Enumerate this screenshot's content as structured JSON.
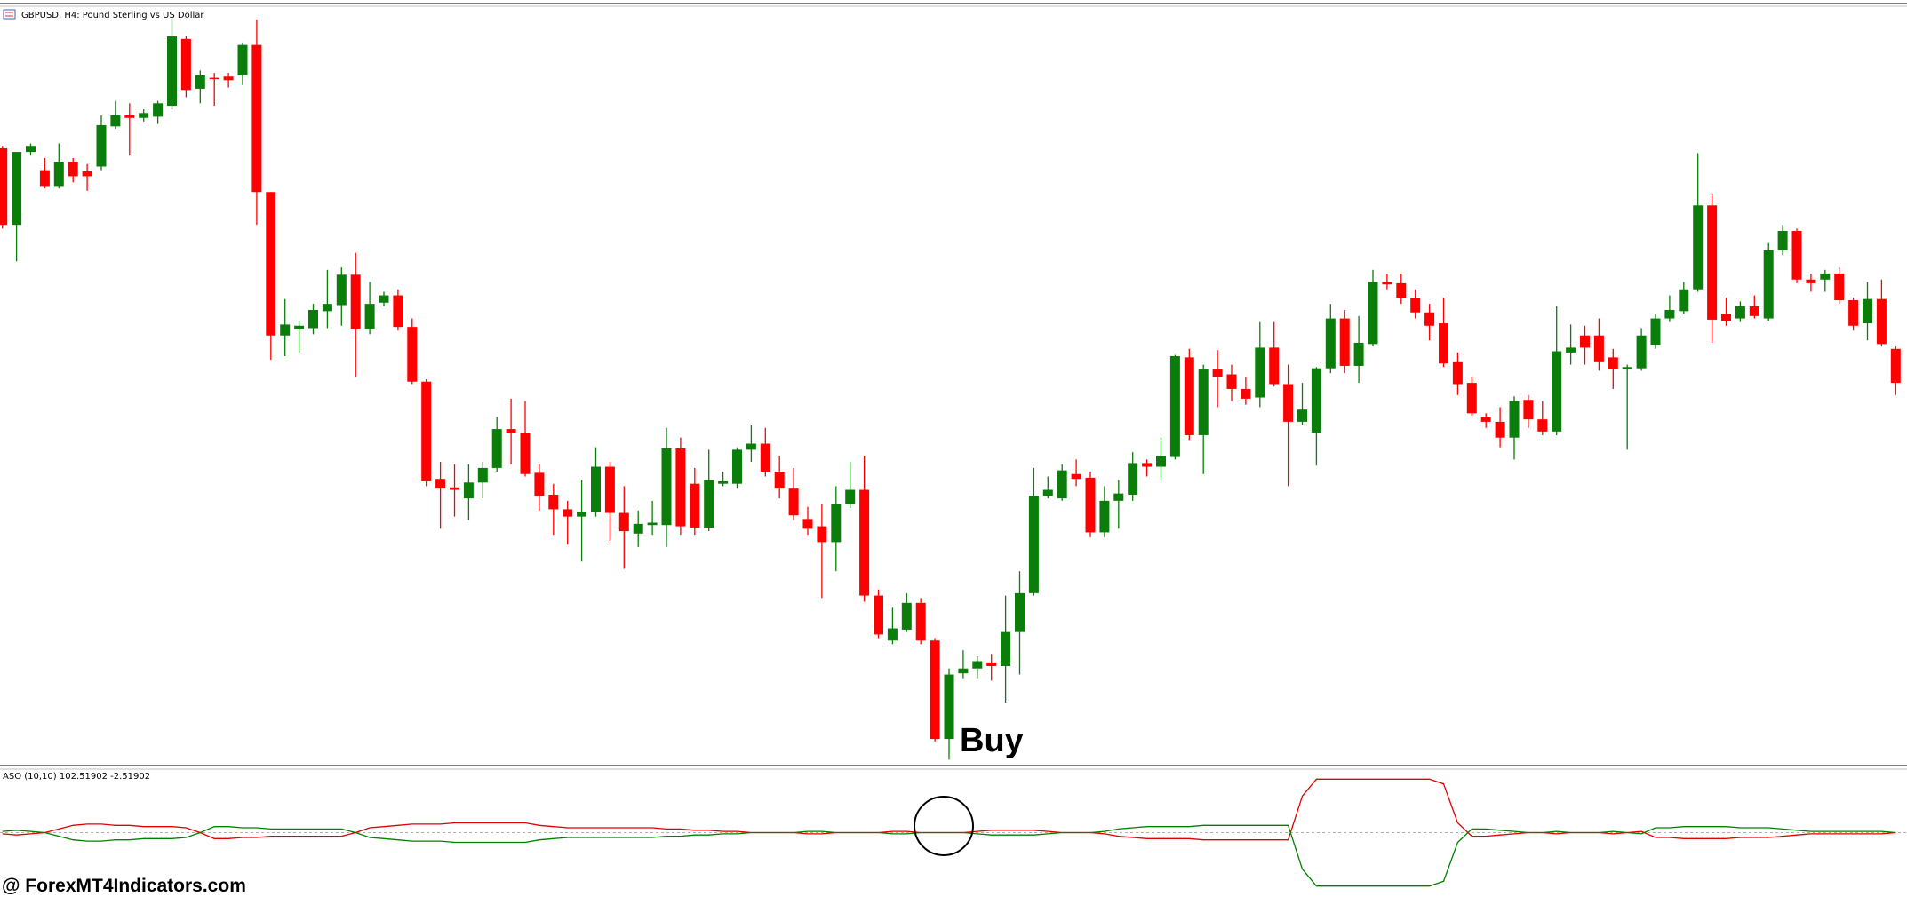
{
  "chart_data": [
    {
      "type": "candlestick",
      "title": "GBPUSD, H4:  Pound Sterling vs US Dollar",
      "ylim": [
        0,
        630
      ],
      "up_color": "#0a7d0a",
      "down_color": "#ff0000",
      "annotations": [
        "Buy"
      ],
      "candles": [
        [
          508,
          510,
          442,
          445
        ],
        [
          445,
          505,
          415,
          505
        ],
        [
          505,
          512,
          502,
          510
        ],
        [
          490,
          500,
          475,
          477
        ],
        [
          477,
          512,
          475,
          497
        ],
        [
          497,
          500,
          480,
          485
        ],
        [
          489,
          495,
          473,
          485
        ],
        [
          493,
          535,
          490,
          527
        ],
        [
          526,
          547,
          524,
          535
        ],
        [
          535,
          545,
          502,
          533
        ],
        [
          533,
          540,
          530,
          537
        ],
        [
          534,
          547,
          528,
          545
        ],
        [
          543,
          615,
          540,
          600
        ],
        [
          598,
          600,
          550,
          556
        ],
        [
          557,
          572,
          545,
          568
        ],
        [
          566,
          570,
          543,
          565
        ],
        [
          567,
          570,
          558,
          564
        ],
        [
          568,
          595,
          560,
          593
        ],
        [
          593,
          614,
          445,
          472
        ],
        [
          472,
          472,
          334,
          354
        ],
        [
          354,
          384,
          337,
          363
        ],
        [
          359,
          366,
          340,
          362
        ],
        [
          360,
          380,
          355,
          375
        ],
        [
          374,
          408,
          360,
          380
        ],
        [
          379,
          410,
          362,
          404
        ],
        [
          404,
          422,
          320,
          359
        ],
        [
          359,
          398,
          355,
          380
        ],
        [
          381,
          390,
          378,
          387
        ],
        [
          387,
          392,
          358,
          361
        ],
        [
          361,
          368,
          314,
          316
        ],
        [
          316,
          318,
          230,
          234
        ],
        [
          236,
          250,
          195,
          228
        ],
        [
          229,
          248,
          205,
          227
        ],
        [
          220,
          248,
          202,
          233
        ],
        [
          233,
          250,
          220,
          245
        ],
        [
          245,
          287,
          242,
          277
        ],
        [
          277,
          302,
          248,
          274
        ],
        [
          274,
          300,
          238,
          240
        ],
        [
          241,
          248,
          210,
          222
        ],
        [
          223,
          232,
          190,
          211
        ],
        [
          211,
          218,
          182,
          205
        ],
        [
          205,
          235,
          168,
          209
        ],
        [
          209,
          262,
          205,
          246
        ],
        [
          246,
          250,
          185,
          208
        ],
        [
          208,
          230,
          162,
          193
        ],
        [
          191,
          210,
          180,
          199
        ],
        [
          198,
          218,
          190,
          200
        ],
        [
          198,
          278,
          180,
          261
        ],
        [
          261,
          270,
          190,
          197
        ],
        [
          232,
          245,
          190,
          196
        ],
        [
          196,
          260,
          193,
          235
        ],
        [
          232,
          242,
          230,
          234
        ],
        [
          232,
          262,
          228,
          260
        ],
        [
          260,
          280,
          250,
          265
        ],
        [
          265,
          278,
          238,
          242
        ],
        [
          242,
          255,
          220,
          228
        ],
        [
          228,
          245,
          202,
          206
        ],
        [
          203,
          213,
          190,
          195
        ],
        [
          197,
          215,
          138,
          184
        ],
        [
          184,
          230,
          160,
          215
        ],
        [
          215,
          250,
          212,
          227
        ],
        [
          227,
          255,
          135,
          140
        ],
        [
          140,
          145,
          105,
          108
        ],
        [
          103,
          130,
          100,
          113
        ],
        [
          112,
          142,
          110,
          134
        ],
        [
          134,
          138,
          100,
          103
        ],
        [
          103,
          105,
          20,
          22
        ],
        [
          22,
          80,
          5,
          75
        ],
        [
          76,
          95,
          72,
          80
        ],
        [
          80,
          90,
          72,
          86
        ],
        [
          85,
          92,
          70,
          82
        ],
        [
          82,
          140,
          52,
          110
        ],
        [
          110,
          160,
          75,
          142
        ],
        [
          142,
          245,
          140,
          222
        ],
        [
          222,
          238,
          220,
          227
        ],
        [
          220,
          248,
          218,
          243
        ],
        [
          240,
          252,
          230,
          236
        ],
        [
          237,
          242,
          188,
          192
        ],
        [
          192,
          230,
          188,
          218
        ],
        [
          218,
          235,
          195,
          224
        ],
        [
          223,
          258,
          218,
          249
        ],
        [
          249,
          252,
          238,
          246
        ],
        [
          246,
          270,
          235,
          255
        ],
        [
          254,
          338,
          252,
          337
        ],
        [
          336,
          343,
          268,
          272
        ],
        [
          272,
          330,
          240,
          326
        ],
        [
          326,
          342,
          295,
          320
        ],
        [
          322,
          330,
          300,
          310
        ],
        [
          310,
          320,
          297,
          302
        ],
        [
          303,
          365,
          295,
          344
        ],
        [
          344,
          365,
          312,
          314
        ],
        [
          314,
          330,
          230,
          283
        ],
        [
          283,
          315,
          280,
          293
        ],
        [
          274,
          328,
          247,
          327
        ],
        [
          327,
          380,
          323,
          368
        ],
        [
          368,
          375,
          323,
          329
        ],
        [
          329,
          370,
          315,
          348
        ],
        [
          347,
          408,
          345,
          398
        ],
        [
          398,
          405,
          392,
          396
        ],
        [
          397,
          405,
          380,
          385
        ],
        [
          385,
          392,
          368,
          373
        ],
        [
          373,
          380,
          350,
          362
        ],
        [
          364,
          385,
          328,
          331
        ],
        [
          332,
          340,
          305,
          314
        ],
        [
          315,
          320,
          288,
          290
        ],
        [
          287,
          290,
          278,
          283
        ],
        [
          283,
          295,
          262,
          270
        ],
        [
          270,
          304,
          252,
          300
        ],
        [
          301,
          305,
          278,
          285
        ],
        [
          285,
          300,
          272,
          275
        ],
        [
          275,
          378,
          272,
          341
        ],
        [
          340,
          363,
          330,
          344
        ],
        [
          354,
          362,
          330,
          344
        ],
        [
          354,
          368,
          325,
          332
        ],
        [
          336,
          343,
          310,
          326
        ],
        [
          326,
          330,
          260,
          328
        ],
        [
          327,
          360,
          325,
          354
        ],
        [
          346,
          372,
          343,
          368
        ],
        [
          368,
          387,
          365,
          375
        ],
        [
          374,
          398,
          372,
          392
        ],
        [
          392,
          504,
          390,
          461
        ],
        [
          461,
          470,
          348,
          367
        ],
        [
          372,
          385,
          362,
          366
        ],
        [
          368,
          382,
          365,
          378
        ],
        [
          378,
          387,
          368,
          370
        ],
        [
          368,
          430,
          366,
          424
        ],
        [
          424,
          445,
          420,
          440
        ],
        [
          440,
          442,
          397,
          400
        ],
        [
          400,
          405,
          390,
          397
        ],
        [
          400,
          408,
          390,
          405
        ],
        [
          405,
          410,
          380,
          383
        ],
        [
          383,
          385,
          358,
          362
        ],
        [
          364,
          398,
          350,
          384
        ],
        [
          384,
          400,
          345,
          347
        ],
        [
          343,
          345,
          305,
          315
        ]
      ]
    },
    {
      "type": "line",
      "title": "ASO (10,10)",
      "ylim": [
        -2.51902,
        102.51902
      ],
      "levels": [
        50
      ],
      "level_color": "#b0b0b0",
      "series": [
        {
          "color": "#e00000",
          "values": [
            49,
            48,
            49,
            50,
            53,
            56,
            57,
            57,
            56,
            56,
            55,
            55,
            55,
            54,
            50,
            45,
            45,
            46,
            46,
            47,
            47,
            47,
            47,
            47,
            47,
            50,
            54,
            55,
            56,
            57,
            57,
            57,
            58,
            58,
            58,
            58,
            58,
            58,
            56,
            55,
            54,
            54,
            54,
            54,
            54,
            54,
            54,
            53,
            53,
            52,
            52,
            51,
            51,
            50,
            50,
            50,
            50,
            49,
            49,
            50,
            50,
            50,
            50,
            51,
            51,
            50,
            50,
            50,
            50,
            51,
            52,
            52,
            52,
            52,
            51,
            50,
            50,
            50,
            49,
            47,
            46,
            45,
            45,
            45,
            45,
            44,
            44,
            44,
            44,
            44,
            44,
            44,
            80,
            94,
            94,
            94,
            94,
            94,
            94,
            94,
            94,
            94,
            90,
            58,
            47,
            47,
            48,
            49,
            50,
            50,
            49,
            50,
            50,
            50,
            49,
            50,
            51,
            46,
            46,
            45,
            45,
            45,
            45,
            46,
            46,
            46,
            47,
            48,
            49,
            49,
            49,
            49,
            49,
            49,
            50
          ]
        },
        {
          "color": "#008000",
          "values": [
            51,
            52,
            51,
            50,
            47,
            44,
            43,
            43,
            44,
            44,
            45,
            45,
            45,
            46,
            50,
            55,
            55,
            54,
            54,
            53,
            53,
            53,
            53,
            53,
            53,
            50,
            46,
            45,
            44,
            43,
            43,
            43,
            42,
            42,
            42,
            42,
            42,
            42,
            44,
            45,
            46,
            46,
            46,
            46,
            46,
            46,
            46,
            47,
            47,
            48,
            48,
            49,
            49,
            50,
            50,
            50,
            50,
            51,
            51,
            50,
            50,
            50,
            50,
            49,
            49,
            50,
            50,
            50,
            50,
            49,
            48,
            48,
            48,
            48,
            49,
            50,
            50,
            50,
            51,
            53,
            54,
            55,
            55,
            55,
            55,
            56,
            56,
            56,
            56,
            56,
            56,
            56,
            20,
            6,
            6,
            6,
            6,
            6,
            6,
            6,
            6,
            6,
            10,
            42,
            53,
            53,
            52,
            51,
            50,
            50,
            51,
            50,
            50,
            50,
            51,
            50,
            49,
            54,
            54,
            55,
            55,
            55,
            55,
            54,
            54,
            54,
            53,
            52,
            51,
            51,
            51,
            51,
            51,
            51,
            50
          ]
        }
      ]
    }
  ],
  "watermark": "@ ForexMT4Indicators.com"
}
